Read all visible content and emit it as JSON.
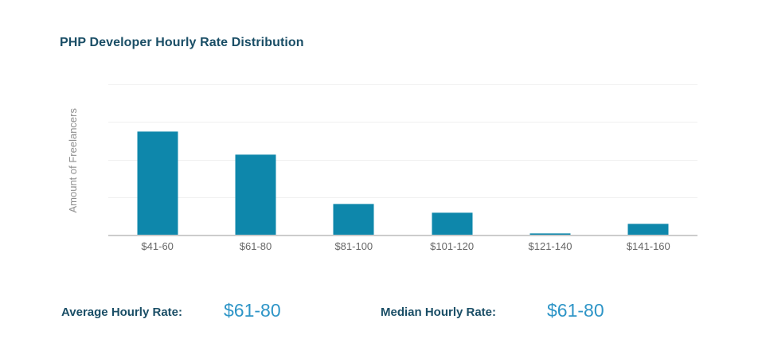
{
  "chart": {
    "title": "PHP Developer Hourly Rate Distribution",
    "y_axis_label": "Amount of Freelancers",
    "colors": {
      "bar": "#0e87ab",
      "bar_top_edge": "#67b4ca",
      "heading_text": "#1a4e66",
      "value_text": "#2e95c7",
      "axis_line": "#cccccc",
      "gridline": "#f0f0f0",
      "x_tick_text": "#676767",
      "y_label_text": "#8f8f8f"
    }
  },
  "chart_data": {
    "type": "bar",
    "title": "PHP Developer Hourly Rate Distribution",
    "categories": [
      "$41-60",
      "$61-80",
      "$81-100",
      "$101-120",
      "$121-140",
      "$141-160"
    ],
    "values": [
      2.76,
      2.14,
      0.82,
      0.59,
      0.05,
      0.29
    ],
    "xlabel": "",
    "ylabel": "Amount of Freelancers",
    "ylim": [
      0,
      4
    ],
    "y_tick_labels": [],
    "grid": "horizontal",
    "legend": "none",
    "note": "y-axis has no numeric tick labels; values estimated in gridline units (1 unit = one horizontal gridline interval)"
  },
  "stats": {
    "average": {
      "label": "Average Hourly Rate:",
      "value": "$61-80"
    },
    "median": {
      "label": "Median Hourly Rate:",
      "value": "$61-80"
    }
  }
}
